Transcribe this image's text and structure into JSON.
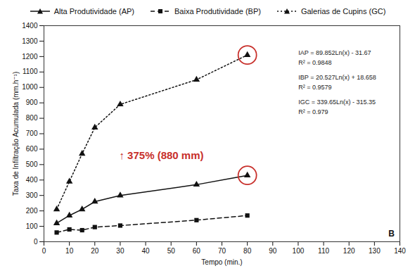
{
  "chart_data": {
    "type": "line",
    "x_label": "Tempo (min.)",
    "y_label": "Taxa de Infiltração Acumulada (mm.h⁻¹)",
    "x": [
      5,
      10,
      15,
      20,
      30,
      60,
      80
    ],
    "series": [
      {
        "name": "Alta Produtividade (AP)",
        "color": "#111111",
        "marker": "triangle",
        "line_style": "solid",
        "values": [
          120,
          170,
          210,
          260,
          300,
          370,
          430
        ]
      },
      {
        "name": "Baixa Produtividade (BP)",
        "color": "#111111",
        "marker": "square",
        "line_style": "dashed",
        "values": [
          60,
          80,
          75,
          95,
          105,
          140,
          170
        ]
      },
      {
        "name": "Galerias de Cupins (GC)",
        "color": "#111111",
        "marker": "triangle",
        "line_style": "dotted",
        "values": [
          210,
          390,
          570,
          740,
          890,
          1050,
          1210
        ]
      }
    ],
    "xlim": [
      0,
      140
    ],
    "xticks": [
      0,
      10,
      20,
      30,
      40,
      50,
      60,
      70,
      80,
      90,
      100,
      110,
      120,
      130,
      140
    ],
    "ylim": [
      0,
      1400
    ],
    "yticks": [
      0,
      100,
      200,
      300,
      400,
      500,
      600,
      700,
      800,
      900,
      1000,
      1100,
      1200,
      1300,
      1400
    ],
    "annotation": "↑ 375% (880 mm)",
    "annotation_color": "#c8302b",
    "equations": [
      [
        "IAP = 89.852Ln(x) - 31.67",
        "R² = 0.9848"
      ],
      [
        "IBP = 20.527Ln(x) + 18.658",
        "R² = 0.9579"
      ],
      [
        "IGC = 339.65Ln(x) - 315.35",
        "R² = 0.979"
      ]
    ],
    "panel": "B",
    "legend": "top",
    "grid": false
  }
}
